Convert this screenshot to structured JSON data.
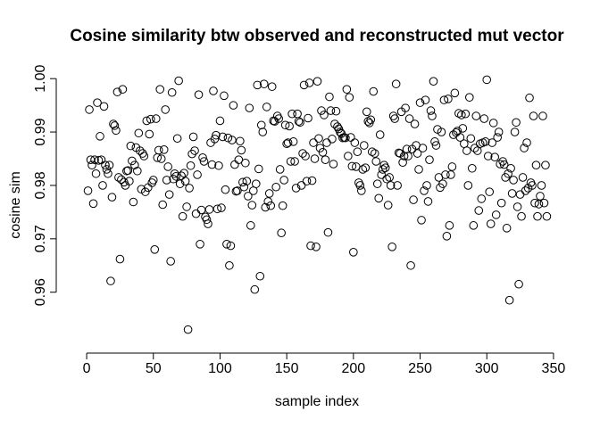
{
  "chart_data": {
    "type": "scatter",
    "title": "Cosine similarity btw observed and reconstructed mut vector",
    "x_label": "sample index",
    "y_label": "cosine sim",
    "color": "#000000",
    "xlim": [
      -12.76,
      358.76
    ],
    "ylim": [
      0.9511,
      1.0017
    ],
    "xticks": [
      0,
      50,
      100,
      150,
      200,
      250,
      300,
      350
    ],
    "yticks": [
      0.96,
      0.97,
      0.98,
      0.99,
      {
        "value": 1,
        "label": "1.00"
      }
    ],
    "x": [
      1,
      2,
      3,
      4,
      5,
      6,
      7,
      8,
      9,
      10,
      11,
      12,
      13,
      14,
      15,
      16,
      17,
      18,
      19,
      20,
      21,
      22,
      23,
      24,
      25,
      26,
      27,
      28,
      29,
      30,
      31,
      32,
      33,
      34,
      35,
      36,
      37,
      38,
      39,
      40,
      41,
      42,
      43,
      44,
      45,
      46,
      47,
      48,
      49,
      50,
      51,
      52,
      53,
      54,
      55,
      56,
      57,
      58,
      59,
      60,
      61,
      62,
      63,
      64,
      65,
      66,
      67,
      68,
      69,
      70,
      71,
      72,
      73,
      74,
      75,
      76,
      77,
      78,
      79,
      80,
      81,
      82,
      83,
      84,
      85,
      86,
      87,
      88,
      89,
      90,
      91,
      92,
      93,
      94,
      95,
      96,
      97,
      98,
      99,
      100,
      101,
      102,
      103,
      104,
      105,
      106,
      107,
      108,
      109,
      110,
      111,
      112,
      113,
      114,
      115,
      116,
      117,
      118,
      119,
      120,
      121,
      122,
      123,
      124,
      125,
      126,
      127,
      128,
      129,
      130,
      131,
      132,
      133,
      134,
      135,
      136,
      137,
      138,
      139,
      140,
      141,
      142,
      143,
      144,
      145,
      146,
      147,
      148,
      149,
      150,
      151,
      152,
      153,
      154,
      155,
      156,
      157,
      158,
      159,
      160,
      161,
      162,
      163,
      164,
      165,
      166,
      167,
      168,
      169,
      170,
      171,
      172,
      173,
      174,
      175,
      176,
      177,
      178,
      179,
      180,
      181,
      182,
      183,
      184,
      185,
      186,
      187,
      188,
      189,
      190,
      191,
      192,
      193,
      194,
      195,
      196,
      197,
      198,
      199,
      200,
      201,
      202,
      203,
      204,
      205,
      206,
      207,
      208,
      209,
      210,
      211,
      212,
      213,
      214,
      215,
      216,
      217,
      218,
      219,
      220,
      221,
      222,
      223,
      224,
      225,
      226,
      227,
      228,
      229,
      230,
      231,
      232,
      233,
      234,
      235,
      236,
      237,
      238,
      239,
      240,
      241,
      242,
      243,
      244,
      245,
      246,
      247,
      248,
      249,
      250,
      251,
      252,
      253,
      254,
      255,
      256,
      257,
      258,
      259,
      260,
      261,
      262,
      263,
      264,
      265,
      266,
      267,
      268,
      269,
      270,
      271,
      272,
      273,
      274,
      275,
      276,
      277,
      278,
      279,
      280,
      281,
      282,
      283,
      284,
      285,
      286,
      287,
      288,
      289,
      290,
      291,
      292,
      293,
      294,
      295,
      296,
      297,
      298,
      299,
      300,
      301,
      302,
      303,
      304,
      305,
      306,
      307,
      308,
      309,
      310,
      311,
      312,
      313,
      314,
      315,
      316,
      317,
      318,
      319,
      320,
      321,
      322,
      323,
      324,
      325,
      326,
      327,
      328,
      329,
      330,
      331,
      332,
      333,
      334,
      335,
      336,
      337,
      338,
      339,
      340,
      341,
      342,
      343,
      344,
      345
    ],
    "values": [
      0.979,
      0.9942,
      0.9848,
      0.9838,
      0.9766,
      0.9848,
      0.9822,
      0.9955,
      0.9847,
      0.9892,
      0.9848,
      0.98,
      0.9948,
      0.9838,
      0.983,
      0.9822,
      0.9838,
      0.9621,
      0.9778,
      0.9915,
      0.9912,
      0.9903,
      0.9975,
      0.9815,
      0.9662,
      0.9811,
      0.998,
      0.9806,
      0.98,
      0.9827,
      0.9828,
      0.9808,
      0.9874,
      0.9846,
      0.9769,
      0.9838,
      0.9871,
      0.9827,
      0.9898,
      0.9865,
      0.9793,
      0.986,
      0.9855,
      0.9788,
      0.9921,
      0.9796,
      0.9896,
      0.9924,
      0.9805,
      0.981,
      0.968,
      0.9925,
      0.9852,
      0.9866,
      0.998,
      0.985,
      0.9764,
      0.9867,
      0.9942,
      0.981,
      0.9835,
      0.9783,
      0.9658,
      0.9974,
      0.9812,
      0.9822,
      0.9817,
      0.9888,
      0.9996,
      0.9803,
      0.9818,
      0.9742,
      0.9823,
      0.9808,
      0.976,
      0.953,
      0.9795,
      0.9837,
      0.9859,
      0.9891,
      0.9865,
      0.9747,
      0.982,
      0.997,
      0.969,
      0.9754,
      0.9852,
      0.9845,
      0.9741,
      0.9736,
      0.9728,
      0.9755,
      0.988,
      0.9839,
      0.9977,
      0.9887,
      0.9894,
      0.9756,
      0.9837,
      0.9921,
      0.9758,
      0.9891,
      0.9968,
      0.9792,
      0.969,
      0.9889,
      0.965,
      0.9687,
      0.9885,
      0.995,
      0.9839,
      0.9789,
      0.979,
      0.9848,
      0.9883,
      0.9866,
      0.9806,
      0.9797,
      0.9842,
      0.9808,
      0.978,
      0.9945,
      0.9725,
      0.9763,
      0.979,
      0.9605,
      0.9803,
      0.9988,
      0.9831,
      0.963,
      0.9913,
      0.99,
      0.999,
      0.9759,
      0.9947,
      0.977,
      0.9785,
      0.9762,
      0.9985,
      0.9921,
      0.992,
      0.9797,
      0.993,
      0.9925,
      0.983,
      0.9711,
      0.9762,
      0.981,
      0.9913,
      0.9878,
      0.988,
      0.9911,
      0.9845,
      0.9934,
      0.9882,
      0.9845,
      0.9795,
      0.9934,
      0.992,
      0.9918,
      0.98,
      0.986,
      0.9988,
      0.9855,
      0.9808,
      0.9926,
      0.9992,
      0.9687,
      0.9809,
      0.988,
      0.985,
      0.9685,
      0.9995,
      0.9888,
      0.987,
      0.994,
      0.9862,
      0.9932,
      0.9848,
      0.988,
      0.9712,
      0.9966,
      0.994,
      0.9887,
      0.984,
      0.9915,
      0.9939,
      0.991,
      0.9906,
      0.99,
      0.9897,
      0.9889,
      0.989,
      0.9889,
      0.998,
      0.9855,
      0.9965,
      0.989,
      0.9836,
      0.9675,
      0.988,
      0.9835,
      0.9863,
      0.9805,
      0.98,
      0.979,
      0.983,
      0.9875,
      0.9833,
      0.9938,
      0.992,
      0.9917,
      0.9923,
      0.9863,
      0.9976,
      0.986,
      0.9845,
      0.9803,
      0.9776,
      0.9895,
      0.982,
      0.983,
      0.9838,
      0.9833,
      0.9812,
      0.9763,
      0.9815,
      0.98,
      0.9685,
      0.993,
      0.9925,
      0.999,
      0.98,
      0.9861,
      0.986,
      0.9938,
      0.9843,
      0.9855,
      0.9945,
      0.9868,
      0.9855,
      0.9925,
      0.965,
      0.9868,
      0.9773,
      0.9915,
      0.9875,
      0.986,
      0.983,
      0.9955,
      0.9735,
      0.987,
      0.979,
      0.996,
      0.98,
      0.977,
      0.9848,
      0.994,
      0.993,
      0.9995,
      0.9882,
      0.9875,
      0.9905,
      0.9815,
      0.9796,
      0.99,
      0.9803,
      0.996,
      0.982,
      0.9705,
      0.9962,
      0.9725,
      0.982,
      0.9835,
      0.9895,
      0.9973,
      0.9899,
      0.9902,
      0.9935,
      0.989,
      0.9932,
      0.9907,
      0.9878,
      0.9934,
      0.9865,
      0.98,
      0.9965,
      0.9888,
      0.9832,
      0.9725,
      0.987,
      0.993,
      0.9865,
      0.9753,
      0.9878,
      0.9775,
      0.988,
      0.9925,
      0.9882,
      0.9998,
      0.9855,
      0.9788,
      0.9728,
      0.988,
      0.9917,
      0.9853,
      0.9745,
      0.989,
      0.99,
      0.984,
      0.9767,
      0.9845,
      0.9839,
      0.9815,
      0.972,
      0.9822,
      0.9585,
      0.9832,
      0.9785,
      0.981,
      0.99,
      0.9918,
      0.976,
      0.9615,
      0.9783,
      0.9742,
      0.9815,
      0.987,
      0.979,
      0.988,
      0.9795,
      0.9964,
      0.9805,
      0.98,
      0.993,
      0.9767,
      0.9838,
      0.9742,
      0.9765,
      0.978,
      0.98,
      0.993,
      0.9767,
      0.9838,
      0.9742
    ]
  }
}
